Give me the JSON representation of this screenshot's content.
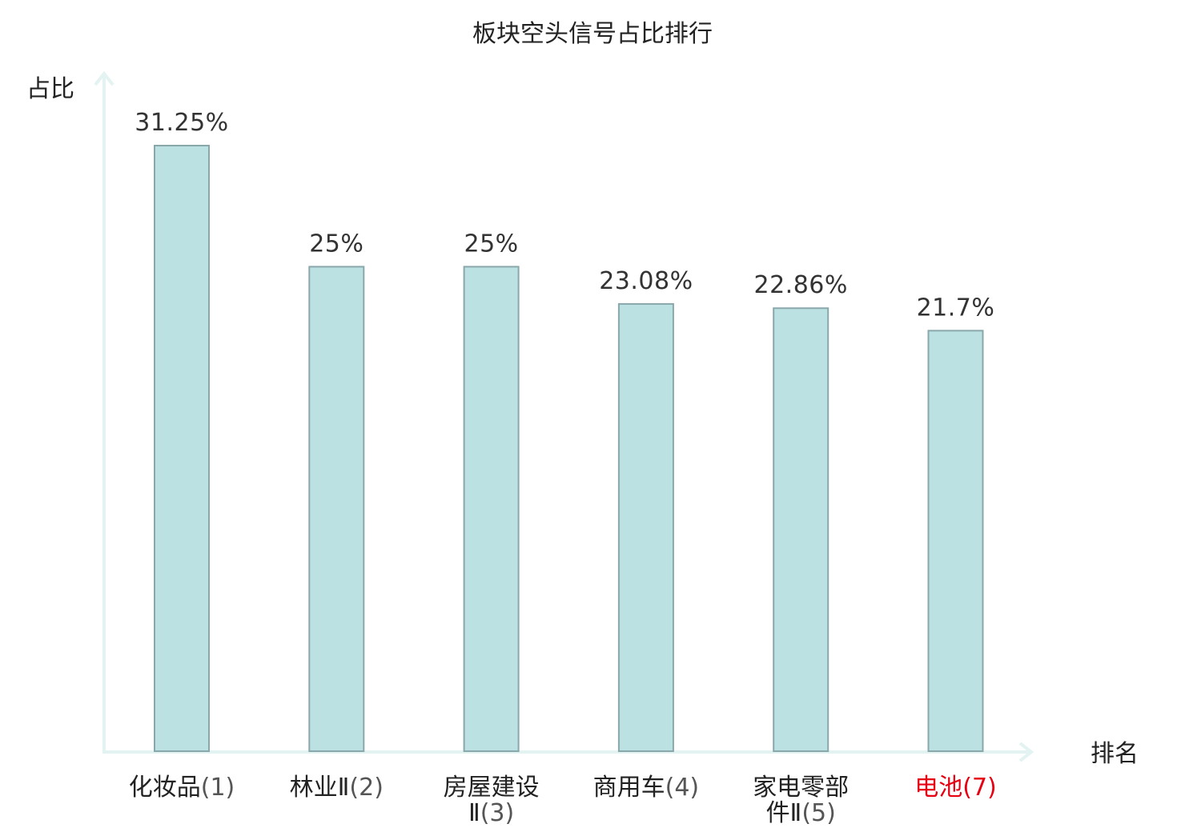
{
  "chart_data": {
    "type": "bar",
    "title": "板块空头信号占比排行",
    "ylabel": "占比",
    "xlabel": "排名",
    "categories": [
      "化妆品",
      "林业Ⅱ",
      "房屋建设Ⅱ",
      "商用车",
      "家电零部件Ⅱ",
      "电池"
    ],
    "ranks": [
      "(1)",
      "(2)",
      "(3)",
      "(4)",
      "(5)",
      "(7)"
    ],
    "values": [
      31.25,
      25,
      25,
      23.08,
      22.86,
      21.7
    ],
    "value_labels": [
      "31.25%",
      "25%",
      "25%",
      "23.08%",
      "22.86%",
      "21.7%"
    ],
    "ylim": [
      0,
      35
    ],
    "grid": false,
    "legend": "none",
    "highlight_index": 5
  },
  "colors": {
    "bar_fill": "#bce1e3",
    "bar_stroke": "#8aa8ab",
    "axis": "#e3f3f1",
    "highlight": "#e60012"
  }
}
